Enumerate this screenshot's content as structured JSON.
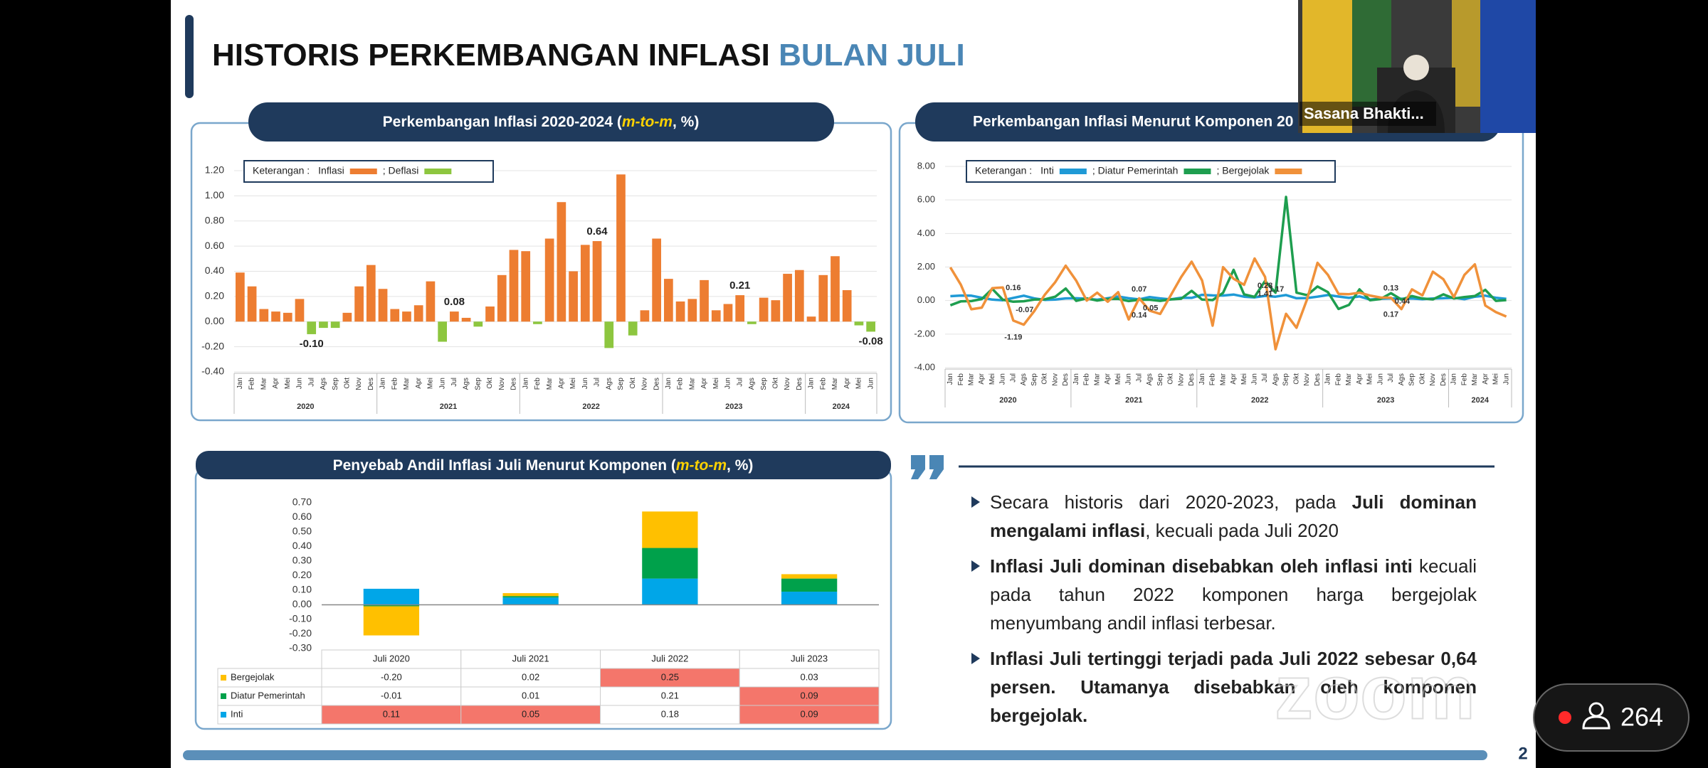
{
  "slide": {
    "title": "HISTORIS PERKEMBANGAN INFLASI ",
    "title_highlight": "BULAN JULI",
    "page_number": "2"
  },
  "chart_data": [
    {
      "type": "bar",
      "title": [
        "Perkembangan Inflasi 2020-2024 (",
        "m-to-m",
        ", %)"
      ],
      "legend_title": "Keterangan :",
      "legend": [
        {
          "name": "Inflasi",
          "color": "#ed7d31"
        },
        {
          "name": "; Deflasi",
          "color": "#8dc63f"
        }
      ],
      "categories": [
        "Jan",
        "Feb",
        "Mar",
        "Apr",
        "Mei",
        "Jun",
        "Jul",
        "Ags",
        "Sep",
        "Okt",
        "Nov",
        "Des",
        "Jan",
        "Feb",
        "Mar",
        "Apr",
        "Mei",
        "Jun",
        "Jul",
        "Ags",
        "Sep",
        "Okt",
        "Nov",
        "Des",
        "Jan",
        "Feb",
        "Mar",
        "Apr",
        "Mei",
        "Jun",
        "Jul",
        "Ags",
        "Sep",
        "Okt",
        "Nov",
        "Des",
        "Jan",
        "Feb",
        "Mar",
        "Apr",
        "Mei",
        "Jun",
        "Jul",
        "Ags",
        "Sep",
        "Okt",
        "Nov",
        "Des",
        "Jan",
        "Feb",
        "Mar",
        "Apr",
        "Mei",
        "Jun"
      ],
      "years": [
        "2020",
        "2021",
        "2022",
        "2023",
        "2024"
      ],
      "values": [
        0.39,
        0.28,
        0.1,
        0.08,
        0.07,
        0.18,
        -0.1,
        -0.05,
        -0.05,
        0.07,
        0.28,
        0.45,
        0.26,
        0.1,
        0.08,
        0.13,
        0.32,
        -0.16,
        0.08,
        0.03,
        -0.04,
        0.12,
        0.37,
        0.57,
        0.56,
        -0.02,
        0.66,
        0.95,
        0.4,
        0.61,
        0.64,
        -0.21,
        1.17,
        -0.11,
        0.09,
        0.66,
        0.34,
        0.16,
        0.18,
        0.33,
        0.09,
        0.14,
        0.21,
        -0.02,
        0.19,
        0.17,
        0.38,
        0.41,
        0.04,
        0.37,
        0.52,
        0.25,
        -0.03,
        -0.08
      ],
      "value_labels": [
        null,
        null,
        null,
        null,
        null,
        null,
        "-0.10",
        null,
        null,
        null,
        null,
        null,
        null,
        null,
        null,
        null,
        null,
        null,
        "0.08",
        null,
        null,
        null,
        null,
        null,
        null,
        null,
        null,
        null,
        null,
        null,
        "0.64",
        null,
        null,
        null,
        null,
        null,
        null,
        null,
        null,
        null,
        null,
        null,
        "0.21",
        null,
        null,
        null,
        null,
        null,
        null,
        null,
        null,
        null,
        null,
        "-0.08"
      ],
      "ylim": [
        -0.4,
        1.2
      ],
      "yticks": [
        {
          "value": -0.4,
          "label": "-0.40"
        },
        {
          "value": -0.2,
          "label": "-0.20"
        },
        {
          "value": 0,
          "label": "0.00"
        },
        {
          "value": 0.2,
          "label": "0.20"
        },
        {
          "value": 0.4,
          "label": "0.40"
        },
        {
          "value": 0.6,
          "label": "0.60"
        },
        {
          "value": 0.8,
          "label": "0.80"
        },
        {
          "value": 1,
          "label": "1.00"
        },
        {
          "value": 1.2,
          "label": "1.20"
        }
      ],
      "grid": true
    },
    {
      "type": "line",
      "title": "Perkembangan Inflasi Menurut Komponen 20",
      "legend_title": "Keterangan :",
      "categories": [
        "Jan",
        "Feb",
        "Mar",
        "Apr",
        "Mei",
        "Jun",
        "Jul",
        "Ags",
        "Sep",
        "Okt",
        "Nov",
        "Des",
        "Jan",
        "Feb",
        "Mar",
        "Apr",
        "Mei",
        "Jun",
        "Jul",
        "Ags",
        "Sep",
        "Okt",
        "Nov",
        "Des",
        "Jan",
        "Feb",
        "Mar",
        "Apr",
        "Mei",
        "Jun",
        "Jul",
        "Ags",
        "Sep",
        "Okt",
        "Nov",
        "Des",
        "Jan",
        "Feb",
        "Mar",
        "Apr",
        "Mei",
        "Jun",
        "Jul",
        "Ags",
        "Sep",
        "Okt",
        "Nov",
        "Des",
        "Jan",
        "Feb",
        "Mar",
        "Apr",
        "Mei",
        "Jun"
      ],
      "years": [
        "2020",
        "2021",
        "2022",
        "2023",
        "2024"
      ],
      "series": [
        {
          "name": "Inti",
          "color": "#1f9ad6",
          "values": [
            0.26,
            0.3,
            0.29,
            0.17,
            0.06,
            0.02,
            0.16,
            0.29,
            0.13,
            0.04,
            0.06,
            0.13,
            0.14,
            0.11,
            0.05,
            0.14,
            0.24,
            0.14,
            0.07,
            0.21,
            0.13,
            0.07,
            0.17,
            0.16,
            0.34,
            0.31,
            0.3,
            0.36,
            0.23,
            0.19,
            0.28,
            0.23,
            0.33,
            0.14,
            0.15,
            0.23,
            0.33,
            0.24,
            0.16,
            0.25,
            0.06,
            0.11,
            0.13,
            0.11,
            0.12,
            0.08,
            0.12,
            0.14,
            0.17,
            0.08,
            0.23,
            0.29,
            0.17,
            0.1
          ],
          "value_labels": [
            null,
            null,
            null,
            null,
            null,
            null,
            "0.16",
            null,
            null,
            null,
            null,
            null,
            null,
            null,
            null,
            null,
            null,
            null,
            "0.07",
            null,
            null,
            null,
            null,
            null,
            null,
            null,
            null,
            null,
            null,
            null,
            "0.28",
            null,
            null,
            null,
            null,
            null,
            null,
            null,
            null,
            null,
            null,
            null,
            "0.13",
            null,
            null,
            null,
            null,
            null,
            null,
            null,
            null,
            null,
            null,
            null
          ]
        },
        {
          "name": "; Diatur Pemerintah",
          "color": "#1e9e4f",
          "values": [
            -0.28,
            -0.05,
            -0.03,
            0.09,
            0.7,
            0.05,
            -0.07,
            -0.04,
            0.06,
            0.07,
            0.23,
            0.72,
            -0.02,
            0.13,
            0.0,
            0.09,
            0.1,
            -0.03,
            0.05,
            0.05,
            -0.02,
            0.07,
            0.11,
            0.58,
            0.06,
            0.03,
            0.46,
            1.83,
            0.37,
            0.22,
            1.17,
            0.47,
            6.18,
            0.47,
            0.32,
            0.84,
            0.5,
            -0.5,
            -0.26,
            0.67,
            0.02,
            0.09,
            0.44,
            0.06,
            0.27,
            0.12,
            0.07,
            0.37,
            0.12,
            0.21,
            0.27,
            0.64,
            -0.02,
            0.03
          ],
          "value_labels": [
            null,
            null,
            null,
            null,
            null,
            null,
            "-0.07",
            null,
            null,
            null,
            null,
            null,
            null,
            null,
            null,
            null,
            null,
            null,
            "0.05",
            null,
            null,
            null,
            null,
            null,
            null,
            null,
            null,
            null,
            null,
            null,
            "1.17",
            null,
            null,
            null,
            null,
            null,
            null,
            null,
            null,
            null,
            null,
            null,
            "0.44",
            null,
            null,
            null,
            null,
            null,
            null,
            null,
            null,
            null,
            null,
            null
          ]
        },
        {
          "name": "; Bergejolak",
          "color": "#f0913a",
          "values": [
            1.98,
            0.95,
            -0.52,
            -0.42,
            0.74,
            0.78,
            -1.19,
            -1.44,
            -0.63,
            0.34,
            1.1,
            2.08,
            1.18,
            0.0,
            0.47,
            -0.07,
            0.5,
            -1.13,
            0.14,
            -0.6,
            -0.8,
            0.3,
            1.4,
            2.32,
            1.2,
            -1.5,
            1.99,
            1.3,
            0.94,
            2.51,
            1.41,
            -2.9,
            -0.79,
            -1.62,
            0.07,
            2.25,
            1.53,
            0.4,
            0.38,
            0.47,
            0.3,
            0.18,
            0.17,
            -0.51,
            0.67,
            0.31,
            1.72,
            1.27,
            0.2,
            1.53,
            2.16,
            -0.3,
            -0.69,
            -0.95
          ],
          "value_labels": [
            null,
            null,
            null,
            null,
            null,
            null,
            "-1.19",
            null,
            null,
            null,
            null,
            null,
            null,
            null,
            null,
            null,
            null,
            null,
            "0.14",
            null,
            null,
            null,
            null,
            null,
            null,
            null,
            null,
            null,
            null,
            null,
            "1.41",
            null,
            null,
            null,
            null,
            null,
            null,
            null,
            null,
            null,
            null,
            null,
            "0.17",
            null,
            null,
            null,
            null,
            null,
            null,
            null,
            null,
            null,
            null,
            null
          ]
        }
      ],
      "ylim": [
        -4,
        8
      ],
      "yticks": [
        {
          "value": -4,
          "label": "-4.00"
        },
        {
          "value": -2,
          "label": "-2.00"
        },
        {
          "value": 0,
          "label": "0.00"
        },
        {
          "value": 2,
          "label": "2.00"
        },
        {
          "value": 4,
          "label": "4.00"
        },
        {
          "value": 6,
          "label": "6.00"
        },
        {
          "value": 8,
          "label": "8.00"
        }
      ],
      "grid": true
    },
    {
      "type": "stacked_bar",
      "title": [
        "Penyebab Andil Inflasi Juli Menurut Komponen (",
        "m-to-m",
        ", %)"
      ],
      "categories": [
        "Juli 2020",
        "Juli 2021",
        "Juli 2022",
        "Juli 2023"
      ],
      "highlight_color": "#f4766b",
      "series": [
        {
          "name": "Bergejolak",
          "color": "#ffc000",
          "values": [
            -0.2,
            0.02,
            0.25,
            0.03
          ],
          "value_labels": [
            "-0.20",
            "0.02",
            "0.25",
            "0.03"
          ],
          "highlight": [
            false,
            false,
            true,
            false
          ]
        },
        {
          "name": "Diatur Pemerintah",
          "color": "#00a14b",
          "values": [
            -0.01,
            0.01,
            0.21,
            0.09
          ],
          "value_labels": [
            "-0.01",
            "0.01",
            "0.21",
            "0.09"
          ],
          "highlight": [
            false,
            false,
            false,
            true
          ]
        },
        {
          "name": "Inti",
          "color": "#00a6e8",
          "values": [
            0.11,
            0.05,
            0.18,
            0.09
          ],
          "value_labels": [
            "0.11",
            "0.05",
            "0.18",
            "0.09"
          ],
          "highlight": [
            true,
            true,
            false,
            true
          ]
        }
      ],
      "ylim": [
        -0.3,
        0.7
      ],
      "yticks": [
        {
          "value": -0.3,
          "label": "-0.30"
        },
        {
          "value": -0.2,
          "label": "-0.20"
        },
        {
          "value": -0.1,
          "label": "-0.10"
        },
        {
          "value": 0,
          "label": "0.00"
        },
        {
          "value": 0.1,
          "label": "0.10"
        },
        {
          "value": 0.2,
          "label": "0.20"
        },
        {
          "value": 0.3,
          "label": "0.30"
        },
        {
          "value": 0.4,
          "label": "0.40"
        },
        {
          "value": 0.5,
          "label": "0.50"
        },
        {
          "value": 0.6,
          "label": "0.60"
        },
        {
          "value": 0.7,
          "label": "0.70"
        }
      ]
    }
  ],
  "notes": {
    "paragraphs": [
      [
        {
          "text": "Secara historis dari 2020-2023, pada ",
          "bold": false
        },
        {
          "text": "Juli dominan mengalami inflasi",
          "bold": true
        },
        {
          "text": ", kecuali pada Juli 2020",
          "bold": false
        }
      ],
      [
        {
          "text": "Inflasi Juli dominan disebabkan oleh inflasi inti",
          "bold": true
        },
        {
          "text": " kecuali pada tahun 2022 komponen harga bergejolak menyumbang andil inflasi terbesar.",
          "bold": false
        }
      ],
      [
        {
          "text": "Inflasi Juli tertinggi terjadi pada Juli 2022 sebesar 0,64 persen. Utamanya disebabkan oleh komponen bergejolak.",
          "bold": true
        }
      ]
    ]
  },
  "zoom": {
    "watermark": "zoom",
    "participant_name": "Sasana Bhakti...",
    "participant_count": 264
  }
}
